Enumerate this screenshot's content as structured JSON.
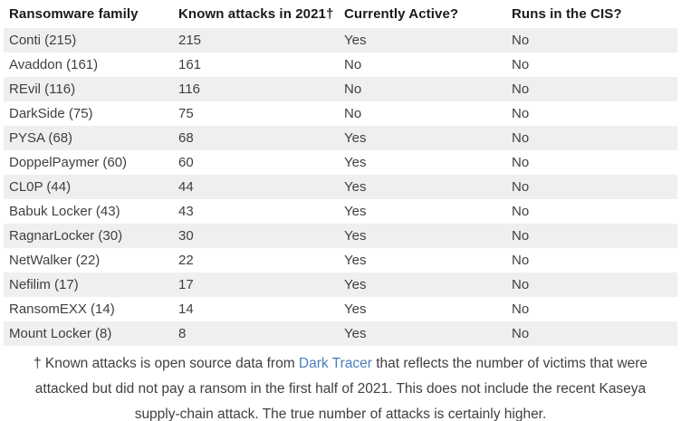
{
  "table": {
    "columns": [
      {
        "label": "Ransomware family"
      },
      {
        "label": "Known attacks in 2021†"
      },
      {
        "label": "Currently Active?"
      },
      {
        "label": "Runs in the CIS?"
      }
    ],
    "rows": [
      {
        "family": "Conti (215)",
        "attacks": "215",
        "active": "Yes",
        "cis": "No"
      },
      {
        "family": "Avaddon (161)",
        "attacks": "161",
        "active": "No",
        "cis": "No"
      },
      {
        "family": "REvil (116)",
        "attacks": "116",
        "active": "No",
        "cis": "No"
      },
      {
        "family": "DarkSide (75)",
        "attacks": "75",
        "active": "No",
        "cis": "No"
      },
      {
        "family": "PYSA (68)",
        "attacks": "68",
        "active": "Yes",
        "cis": "No"
      },
      {
        "family": "DoppelPaymer (60)",
        "attacks": "60",
        "active": "Yes",
        "cis": "No"
      },
      {
        "family": "CL0P (44)",
        "attacks": "44",
        "active": "Yes",
        "cis": "No"
      },
      {
        "family": "Babuk Locker (43)",
        "attacks": "43",
        "active": "Yes",
        "cis": "No"
      },
      {
        "family": "RagnarLocker (30)",
        "attacks": "30",
        "active": "Yes",
        "cis": "No"
      },
      {
        "family": "NetWalker (22)",
        "attacks": "22",
        "active": "Yes",
        "cis": "No"
      },
      {
        "family": "Nefilim (17)",
        "attacks": "17",
        "active": "Yes",
        "cis": "No"
      },
      {
        "family": "RansomEXX (14)",
        "attacks": "14",
        "active": "Yes",
        "cis": "No"
      },
      {
        "family": "Mount Locker (8)",
        "attacks": "8",
        "active": "Yes",
        "cis": "No"
      }
    ]
  },
  "footnote": {
    "text_before_link": "† Known attacks is open source data from ",
    "link_text": "Dark Tracer",
    "text_after_link": " that reflects the number of victims that were attacked but did not pay a ransom in the first half of 2021. This does not include the recent Kaseya supply-chain attack. The true number of attacks is certainly higher."
  },
  "colors": {
    "stripe": "#efefef",
    "body_text": "#3f3f3f",
    "header_text": "#1b1b1b",
    "link": "#4a7dbf"
  }
}
